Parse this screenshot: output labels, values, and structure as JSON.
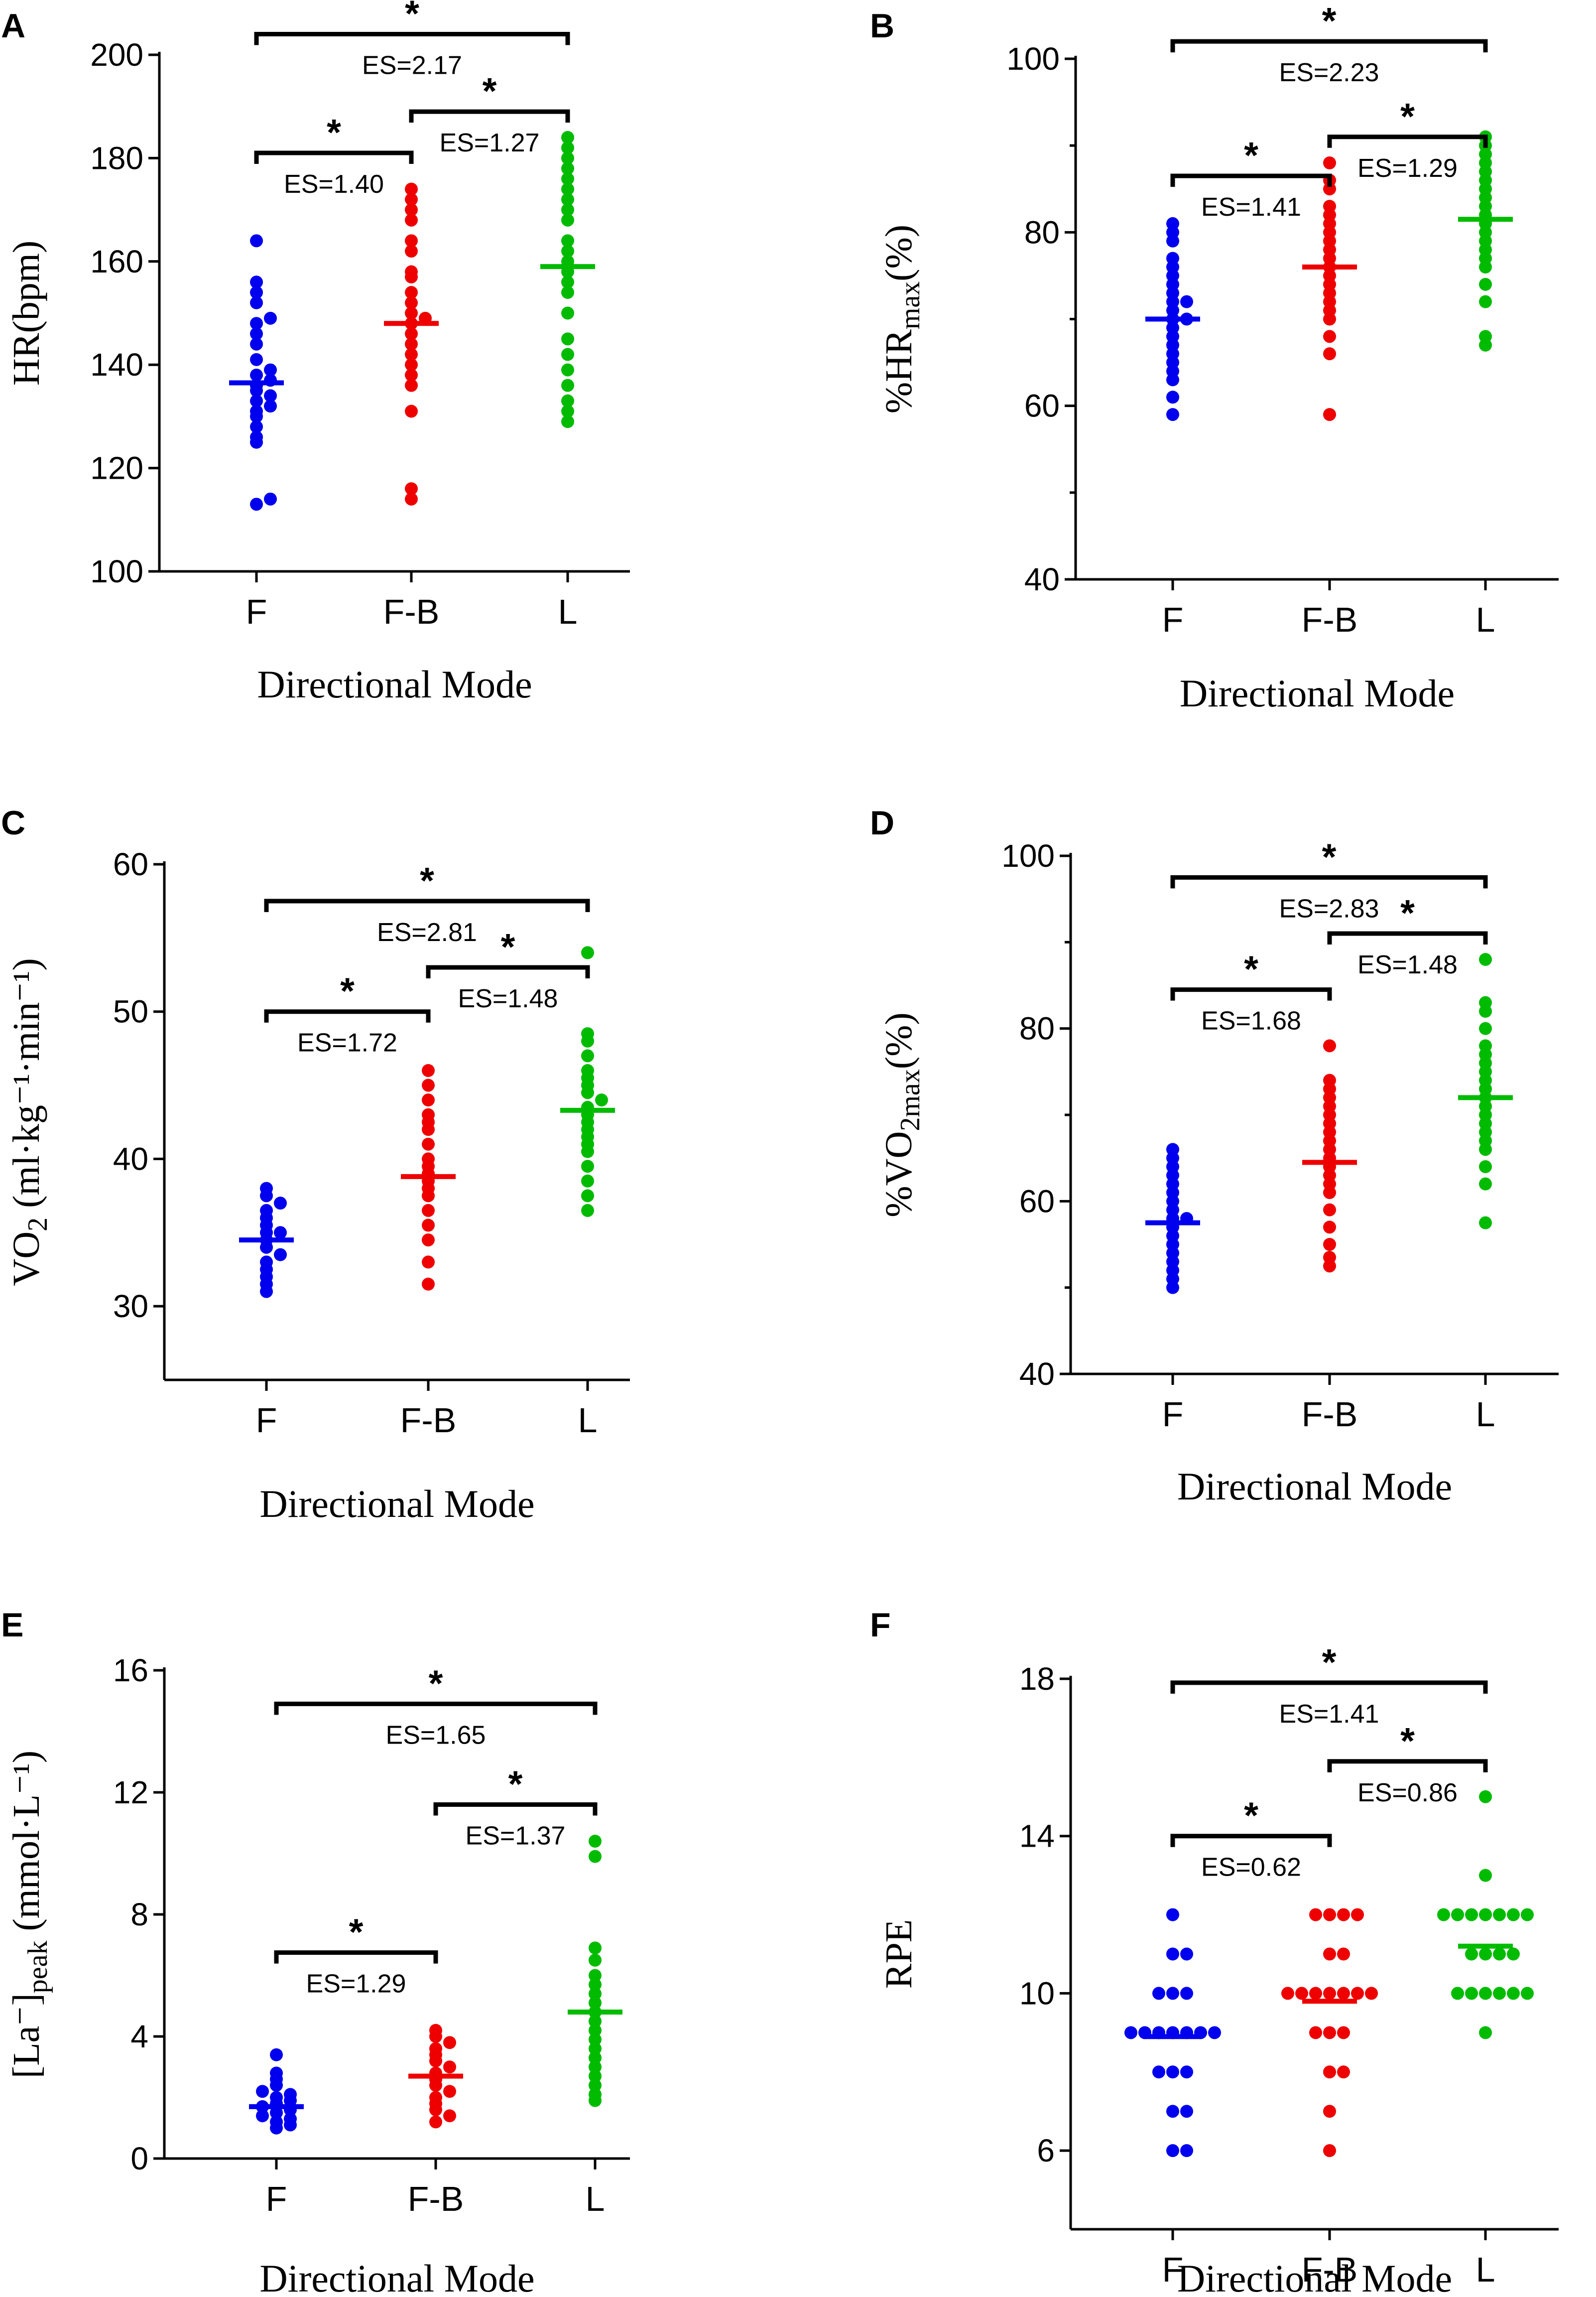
{
  "chart_data": [
    {
      "panel": "A",
      "type": "scatter",
      "xlabel": "Directional Mode",
      "ylabel": {
        "base": "HR(bpm)",
        "sub": "",
        "tail": ""
      },
      "ylim": [
        100,
        200
      ],
      "yticks": [
        "100",
        "120",
        "140",
        "160",
        "180",
        "200"
      ],
      "minor_ticks": false,
      "categories": [
        "F",
        "F-B",
        "L"
      ],
      "colors": [
        "#0000ee",
        "#ee0000",
        "#00bb00"
      ],
      "series": [
        {
          "name": "F",
          "mean": 136.5,
          "values": [
            113,
            114,
            125,
            126,
            128,
            130,
            131,
            132,
            133,
            134,
            135,
            136,
            137,
            138,
            139,
            141,
            144,
            146,
            148,
            149,
            152,
            154,
            156,
            164
          ]
        },
        {
          "name": "F-B",
          "mean": 148,
          "values": [
            114,
            116,
            131,
            136,
            138,
            140,
            142,
            144,
            146,
            148,
            149,
            150,
            152,
            154,
            157,
            158,
            162,
            164,
            168,
            170,
            172,
            174
          ]
        },
        {
          "name": "L",
          "mean": 159,
          "values": [
            129,
            131,
            133,
            136,
            139,
            142,
            145,
            150,
            154,
            156,
            158,
            160,
            162,
            164,
            168,
            170,
            172,
            174,
            176,
            178,
            180,
            182,
            184
          ]
        }
      ],
      "comparisons": [
        {
          "from": "F",
          "to": "L",
          "star": "*",
          "es": "ES=2.17",
          "y": 204,
          "label": "above"
        },
        {
          "from": "F-B",
          "to": "L",
          "star": "*",
          "es": "ES=1.27",
          "y": 189,
          "label": "below"
        },
        {
          "from": "F",
          "to": "F-B",
          "star": "*",
          "es": "ES=1.40",
          "y": 181,
          "label": "below"
        }
      ]
    },
    {
      "panel": "B",
      "type": "scatter",
      "xlabel": "Directional Mode",
      "ylabel": {
        "base": "%HR",
        "sub": "max",
        "tail": "(%)"
      },
      "ylim": [
        40,
        100
      ],
      "yticks": [
        "40",
        "60",
        "80",
        "100"
      ],
      "minor_ticks": true,
      "categories": [
        "F",
        "F-B",
        "L"
      ],
      "colors": [
        "#0000ee",
        "#ee0000",
        "#00bb00"
      ],
      "series": [
        {
          "name": "F",
          "mean": 70,
          "values": [
            59,
            61,
            63,
            64,
            65,
            66,
            67,
            68,
            69,
            70,
            70,
            71,
            72,
            72,
            73,
            74,
            75,
            76,
            77,
            79,
            80,
            81
          ]
        },
        {
          "name": "F-B",
          "mean": 76,
          "values": [
            59,
            66,
            68,
            70,
            71,
            72,
            73,
            74,
            75,
            76,
            77,
            78,
            79,
            80,
            81,
            82,
            83,
            85,
            86,
            88
          ]
        },
        {
          "name": "L",
          "mean": 81.5,
          "values": [
            67,
            68,
            72,
            74,
            76,
            77,
            78,
            79,
            80,
            81,
            82,
            83,
            84,
            85,
            86,
            87,
            88,
            89,
            90,
            91
          ]
        }
      ],
      "comparisons": [
        {
          "from": "F",
          "to": "L",
          "star": "*",
          "es": "ES=2.23",
          "y": 102,
          "label": "below"
        },
        {
          "from": "F-B",
          "to": "L",
          "star": "*",
          "es": "ES=1.29",
          "y": 91,
          "label": "below"
        },
        {
          "from": "F",
          "to": "F-B",
          "star": "*",
          "es": "ES=1.41",
          "y": 86.5,
          "label": "below"
        }
      ]
    },
    {
      "panel": "C",
      "type": "scatter",
      "xlabel": "Directional Mode",
      "ylabel": {
        "base": "VO",
        "sub": "2",
        "tail": " (ml·kg⁻¹·min⁻¹)"
      },
      "ylim": [
        25,
        60
      ],
      "yticks": [
        "30",
        "40",
        "50",
        "60"
      ],
      "ytick_values": [
        30,
        40,
        50,
        60
      ],
      "minor_ticks": false,
      "categories": [
        "F",
        "F-B",
        "L"
      ],
      "colors": [
        "#0000ee",
        "#ee0000",
        "#00bb00"
      ],
      "series": [
        {
          "name": "F",
          "mean": 34.5,
          "values": [
            31,
            31.5,
            32,
            32.5,
            33,
            33.5,
            34,
            34.5,
            35,
            35,
            35.5,
            36,
            36.5,
            37,
            37.5,
            38
          ]
        },
        {
          "name": "F-B",
          "mean": 38.8,
          "values": [
            31.5,
            33,
            34.5,
            35.5,
            36.5,
            37.5,
            38,
            38.5,
            39,
            39.5,
            40,
            41,
            42,
            42.5,
            43,
            44,
            45,
            46
          ]
        },
        {
          "name": "L",
          "mean": 43.3,
          "values": [
            36.5,
            37.5,
            38.5,
            39.5,
            40.5,
            41,
            41.5,
            42,
            42.5,
            43,
            43.5,
            44,
            44.5,
            45,
            45.5,
            46,
            47,
            48,
            48.5,
            54
          ]
        }
      ],
      "comparisons": [
        {
          "from": "F",
          "to": "L",
          "star": "*",
          "es": "ES=2.81",
          "y": 57.5,
          "label": "below"
        },
        {
          "from": "F-B",
          "to": "L",
          "star": "*",
          "es": "ES=1.48",
          "y": 53,
          "label": "below"
        },
        {
          "from": "F",
          "to": "F-B",
          "star": "*",
          "es": "ES=1.72",
          "y": 50,
          "label": "below"
        }
      ]
    },
    {
      "panel": "D",
      "type": "scatter",
      "xlabel": "Directional Mode",
      "ylabel": {
        "base": "%VO",
        "sub": "2max",
        "tail": "(%)"
      },
      "ylim": [
        40,
        100
      ],
      "yticks": [
        "40",
        "60",
        "80",
        "100"
      ],
      "minor_ticks": true,
      "categories": [
        "F",
        "F-B",
        "L"
      ],
      "colors": [
        "#0000ee",
        "#ee0000",
        "#00bb00"
      ],
      "series": [
        {
          "name": "F",
          "mean": 57.5,
          "values": [
            50,
            51,
            52,
            53,
            54,
            55,
            56,
            57,
            58,
            58,
            59,
            60,
            61,
            62,
            63,
            64,
            65,
            66
          ]
        },
        {
          "name": "F-B",
          "mean": 64.5,
          "values": [
            52.5,
            53.5,
            55,
            57,
            59,
            61,
            62,
            63,
            64,
            65,
            66,
            67,
            68,
            69,
            70,
            71,
            72,
            73,
            74,
            78
          ]
        },
        {
          "name": "L",
          "mean": 72,
          "values": [
            57.5,
            62,
            64,
            66,
            67,
            68,
            69,
            70,
            71,
            72,
            73,
            74,
            75,
            76,
            77,
            78,
            80,
            82,
            83,
            88
          ]
        }
      ],
      "comparisons": [
        {
          "from": "F",
          "to": "L",
          "star": "*",
          "es": "ES=2.83",
          "y": 97.5,
          "label": "below"
        },
        {
          "from": "F-B",
          "to": "L",
          "star": "*",
          "es": "ES=1.48",
          "y": 91,
          "label": "below"
        },
        {
          "from": "F",
          "to": "F-B",
          "star": "*",
          "es": "ES=1.68",
          "y": 84.5,
          "label": "below"
        }
      ]
    },
    {
      "panel": "E",
      "type": "scatter",
      "xlabel": "Directional Mode",
      "ylabel": {
        "base": "[La⁻]",
        "sub": "peak",
        "tail": " (mmol·L⁻¹)"
      },
      "ylim": [
        0,
        16
      ],
      "yticks": [
        "0",
        "4",
        "8",
        "12",
        "16"
      ],
      "minor_ticks": false,
      "categories": [
        "F",
        "F-B",
        "L"
      ],
      "colors": [
        "#0000ee",
        "#ee0000",
        "#00bb00"
      ],
      "series": [
        {
          "name": "F",
          "mean": 1.7,
          "values": [
            1.0,
            1.1,
            1.2,
            1.3,
            1.4,
            1.5,
            1.6,
            1.7,
            1.8,
            1.9,
            2.0,
            2.1,
            2.2,
            2.4,
            2.6,
            2.8,
            3.4
          ]
        },
        {
          "name": "F-B",
          "mean": 2.7,
          "values": [
            1.2,
            1.4,
            1.6,
            1.8,
            2.0,
            2.2,
            2.4,
            2.6,
            2.8,
            3.0,
            3.2,
            3.4,
            3.6,
            3.8,
            4.0,
            4.2
          ]
        },
        {
          "name": "L",
          "mean": 4.8,
          "values": [
            1.9,
            2.1,
            2.4,
            2.7,
            3.0,
            3.3,
            3.6,
            3.9,
            4.2,
            4.5,
            4.8,
            5.1,
            5.4,
            5.7,
            6.0,
            6.5,
            6.9,
            9.9,
            10.4
          ]
        }
      ],
      "comparisons": [
        {
          "from": "F",
          "to": "L",
          "star": "*",
          "es": "ES=1.65",
          "y": 14.9,
          "label": "below"
        },
        {
          "from": "F-B",
          "to": "L",
          "star": "*",
          "es": "ES=1.37",
          "y": 11.6,
          "label": "below"
        },
        {
          "from": "F",
          "to": "F-B",
          "star": "*",
          "es": "ES=1.29",
          "y": 6.75,
          "label": "below"
        }
      ]
    },
    {
      "panel": "F",
      "type": "scatter",
      "xlabel": "Directional Mode",
      "ylabel": {
        "base": "RPE",
        "sub": "",
        "tail": ""
      },
      "ylim": [
        4,
        18
      ],
      "yticks": [
        "6",
        "10",
        "14",
        "18"
      ],
      "ytick_values": [
        6,
        10,
        14,
        18
      ],
      "minor_ticks": false,
      "categories": [
        "F",
        "F-B",
        "L"
      ],
      "colors": [
        "#0000ee",
        "#ee0000",
        "#00bb00"
      ],
      "series": [
        {
          "name": "F",
          "mean": 8.9,
          "values": [
            6,
            6,
            7,
            7,
            8,
            8,
            8,
            9,
            9,
            9,
            9,
            9,
            9,
            9,
            10,
            10,
            10,
            11,
            11,
            12
          ]
        },
        {
          "name": "F-B",
          "mean": 9.8,
          "values": [
            6,
            7,
            8,
            8,
            9,
            9,
            9,
            10,
            10,
            10,
            10,
            10,
            10,
            10,
            11,
            11,
            12,
            12,
            12,
            12
          ]
        },
        {
          "name": "L",
          "mean": 11.2,
          "values": [
            9,
            10,
            10,
            10,
            10,
            10,
            10,
            11,
            11,
            11,
            11,
            12,
            12,
            12,
            12,
            12,
            12,
            12,
            13,
            15
          ]
        }
      ],
      "comparisons": [
        {
          "from": "F",
          "to": "L",
          "star": "*",
          "es": "ES=1.41",
          "y": 17.9,
          "label": "below"
        },
        {
          "from": "F-B",
          "to": "L",
          "star": "*",
          "es": "ES=0.86",
          "y": 15.9,
          "label": "below"
        },
        {
          "from": "F",
          "to": "F-B",
          "star": "*",
          "es": "ES=0.62",
          "y": 14.0,
          "label": "below"
        }
      ]
    }
  ]
}
